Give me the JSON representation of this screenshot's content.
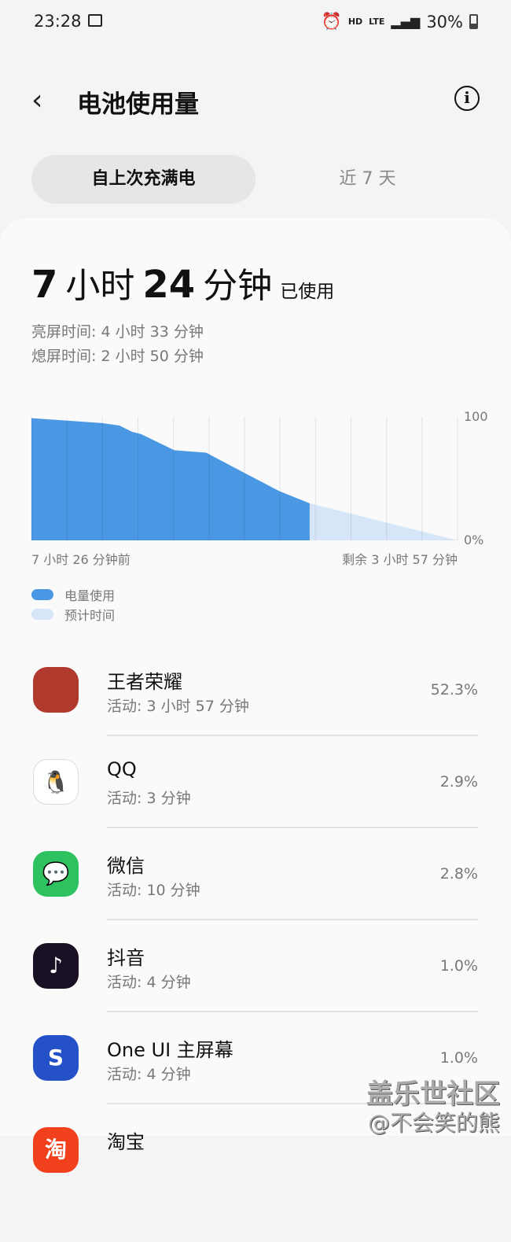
{
  "status": {
    "time": "23:28",
    "hd": "HD",
    "lte": "LTE",
    "battery": "30%"
  },
  "header": {
    "title": "电池使用量",
    "back_icon": "chevron-left-icon",
    "info_icon": "info-icon"
  },
  "tabs": [
    {
      "label": "自上次充满电",
      "active": true
    },
    {
      "label": "近 7 天",
      "active": false
    }
  ],
  "summary": {
    "hours": "7",
    "hours_unit": "小时",
    "minutes": "24",
    "minutes_unit": "分钟",
    "used_label": "已使用",
    "screen_on": "亮屏时间:  4 小时 33 分钟",
    "screen_off": "熄屏时间:  2 小时 50 分钟"
  },
  "chart_data": {
    "type": "area",
    "x_unit": "minutes relative to now",
    "xlim": [
      -446,
      237
    ],
    "ylim": [
      0,
      100
    ],
    "y_ticks": [
      "100",
      "0%"
    ],
    "x_start_label": "7 小时 26 分钟前",
    "x_end_label": "剩余 3 小时 57 分钟",
    "grid": "vertical",
    "legend_placement": "bottom-left",
    "series": [
      {
        "name": "电量使用",
        "color": "#4a98e3",
        "x": [
          -446,
          -389,
          -333,
          -305,
          -285,
          -270,
          -217,
          -166,
          -106,
          -49,
          0
        ],
        "y": [
          99,
          97,
          95,
          93,
          88,
          86,
          73,
          71,
          55,
          40,
          30
        ]
      },
      {
        "name": "预计时间",
        "color": "#d6e5f7",
        "x": [
          0,
          237
        ],
        "y": [
          30,
          0
        ]
      }
    ]
  },
  "apps": [
    {
      "name": "王者荣耀",
      "activity": "活动: 3 小时 57 分钟",
      "percent": "52.3%",
      "icon": "honor-of-kings-icon",
      "color": "#b03a2e"
    },
    {
      "name": "QQ",
      "activity": "活动: 3 分钟",
      "percent": "2.9%",
      "icon": "qq-penguin-icon",
      "color": "#ffffff"
    },
    {
      "name": "微信",
      "activity": "活动: 10 分钟",
      "percent": "2.8%",
      "icon": "wechat-icon",
      "color": "#2dc15f"
    },
    {
      "name": "抖音",
      "activity": "活动: 4 分钟",
      "percent": "1.0%",
      "icon": "douyin-icon",
      "color": "#1a1024"
    },
    {
      "name": "One UI 主屏幕",
      "activity": "活动: 4 分钟",
      "percent": "1.0%",
      "icon": "one-ui-home-icon",
      "color": "#2450c8"
    },
    {
      "name": "淘宝",
      "activity": "",
      "percent": "",
      "icon": "taobao-icon",
      "color": "#f0401c"
    }
  ],
  "watermark": {
    "line1": "盖乐世社区",
    "line2": "@不会笑的熊"
  }
}
